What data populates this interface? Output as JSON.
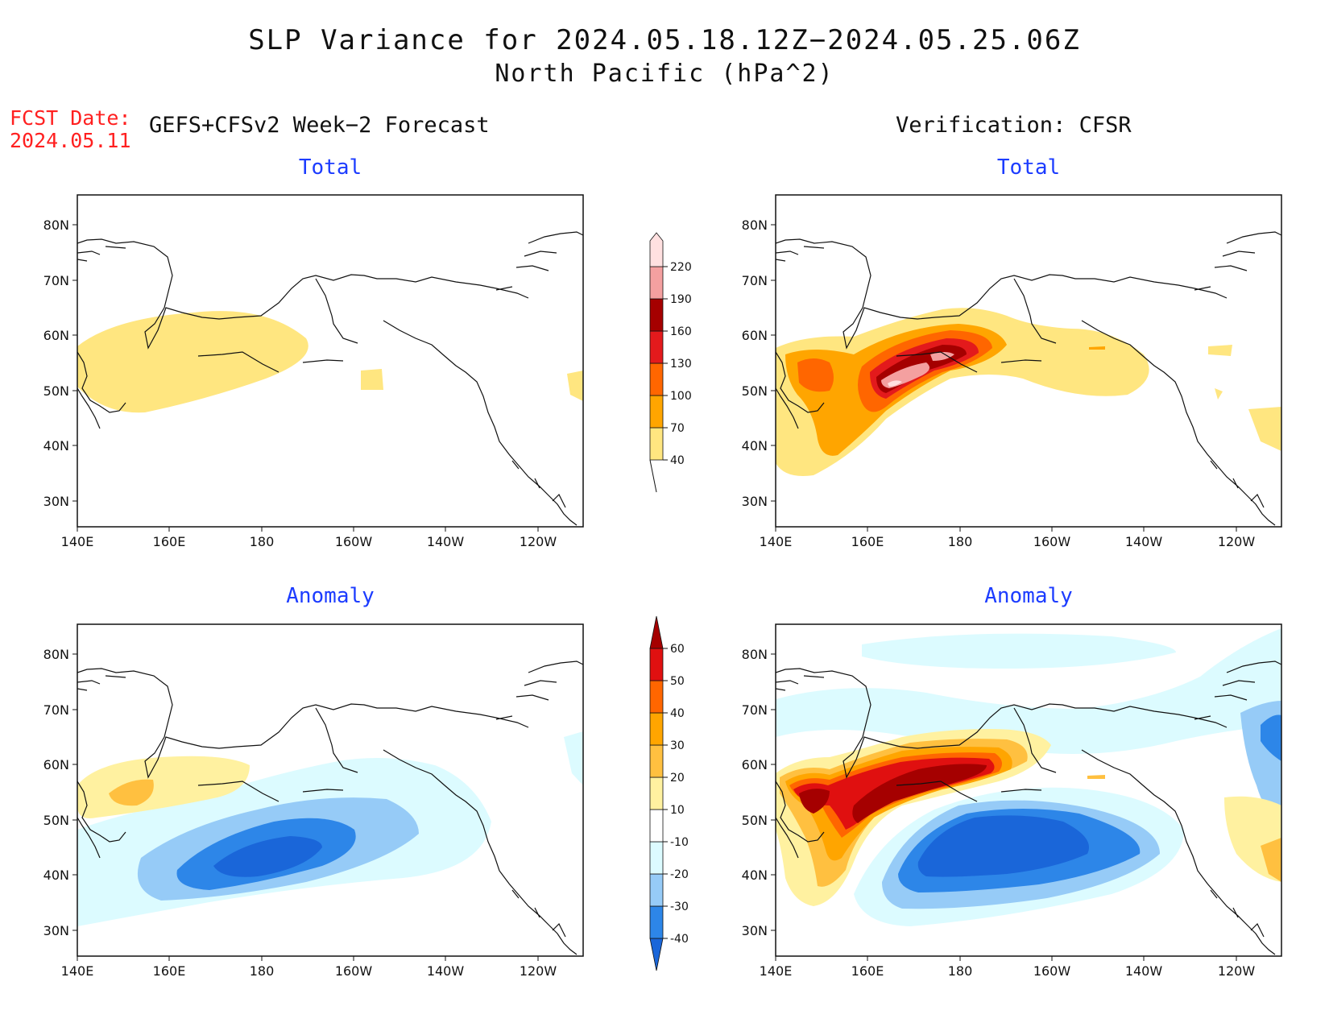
{
  "title": {
    "line1": "SLP Variance for 2024.05.18.12Z−2024.05.25.06Z",
    "line2": "North Pacific (hPa^2)"
  },
  "fcst_date": {
    "label": "FCST Date:",
    "value": "2024.05.11"
  },
  "left_header": "GEFS+CFSv2 Week−2 Forecast",
  "right_header": "Verification: CFSR",
  "panels": {
    "top_left": "Total",
    "top_right": "Total",
    "bottom_left": "Anomaly",
    "bottom_right": "Anomaly"
  },
  "axes": {
    "lat_labels": [
      "80N",
      "70N",
      "60N",
      "50N",
      "40N",
      "30N"
    ],
    "lon_labels": [
      "140E",
      "160E",
      "180",
      "160W",
      "140W",
      "120W"
    ]
  },
  "colorbar_total": {
    "levels": [
      "40",
      "70",
      "100",
      "130",
      "160",
      "190",
      "220"
    ],
    "colors": [
      "#ffe680",
      "#ffa500",
      "#ff6600",
      "#e31a1c",
      "#a50000",
      "#f4a0a0",
      "#ffe0e0"
    ]
  },
  "colorbar_anomaly": {
    "levels": [
      "-40",
      "-30",
      "-20",
      "-10",
      "10",
      "20",
      "30",
      "40",
      "50",
      "60"
    ],
    "colors": [
      "#1a66d9",
      "#2d86e8",
      "#96cbf7",
      "#dcfbff",
      "#ffffff",
      "#fff1a0",
      "#ffc040",
      "#ffa500",
      "#ff6600",
      "#e01010",
      "#a50000"
    ]
  }
}
